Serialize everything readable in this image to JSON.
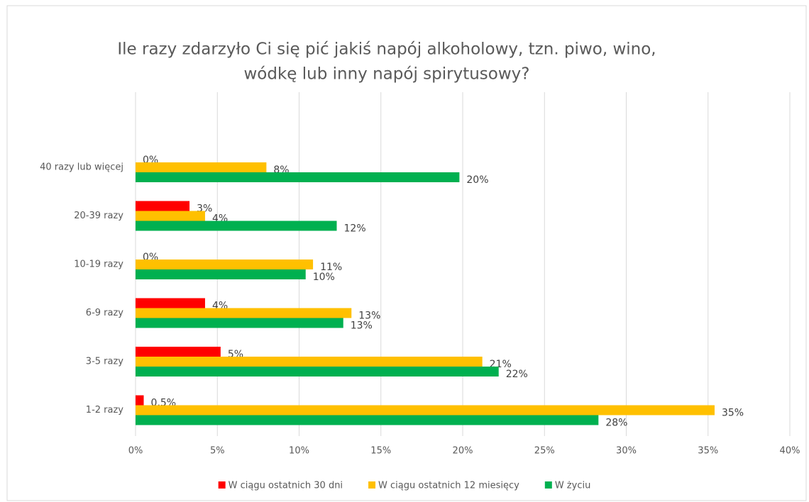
{
  "chart_data": {
    "type": "barh",
    "title": [
      "Ile razy zdarzyło Ci się pić jakiś napój alkoholowy, tzn. piwo, wino,",
      "wódkę lub inny napój spirytusowy?"
    ],
    "categories": [
      "40 razy lub więcej",
      "20-39 razy",
      "10-19 razy",
      "6-9 razy",
      "3-5 razy",
      "1-2 razy"
    ],
    "series": [
      {
        "name": "W ciągu ostatnich 30 dni",
        "color": "#ff0000",
        "values": [
          0,
          3.3,
          0,
          4.25,
          5.2,
          0.5
        ],
        "value_labels": [
          "0%",
          "3%",
          "0%",
          "4%",
          "5%",
          "0,5%"
        ]
      },
      {
        "name": "W ciągu ostatnich 12 miesięcy",
        "color": "#ffc000",
        "values": [
          8.0,
          4.25,
          10.85,
          13.2,
          21.2,
          35.4
        ],
        "value_labels": [
          "8%",
          "4%",
          "11%",
          "13%",
          "21%",
          "35%"
        ]
      },
      {
        "name": "W życiu",
        "color": "#00b050",
        "values": [
          19.8,
          12.3,
          10.4,
          12.7,
          22.2,
          28.3
        ],
        "value_labels": [
          "20%",
          "12%",
          "10%",
          "13%",
          "22%",
          "28%"
        ]
      }
    ],
    "xlim": [
      0,
      40
    ],
    "xticks": [
      {
        "value": 0,
        "label": "0%"
      },
      {
        "value": 5,
        "label": "5%"
      },
      {
        "value": 10,
        "label": "10%"
      },
      {
        "value": 15,
        "label": "15%"
      },
      {
        "value": 20,
        "label": "20%"
      },
      {
        "value": 25,
        "label": "25%"
      },
      {
        "value": 30,
        "label": "30%"
      },
      {
        "value": 35,
        "label": "35%"
      },
      {
        "value": 40,
        "label": "40%"
      }
    ],
    "grid": true,
    "legend": "bottom"
  }
}
